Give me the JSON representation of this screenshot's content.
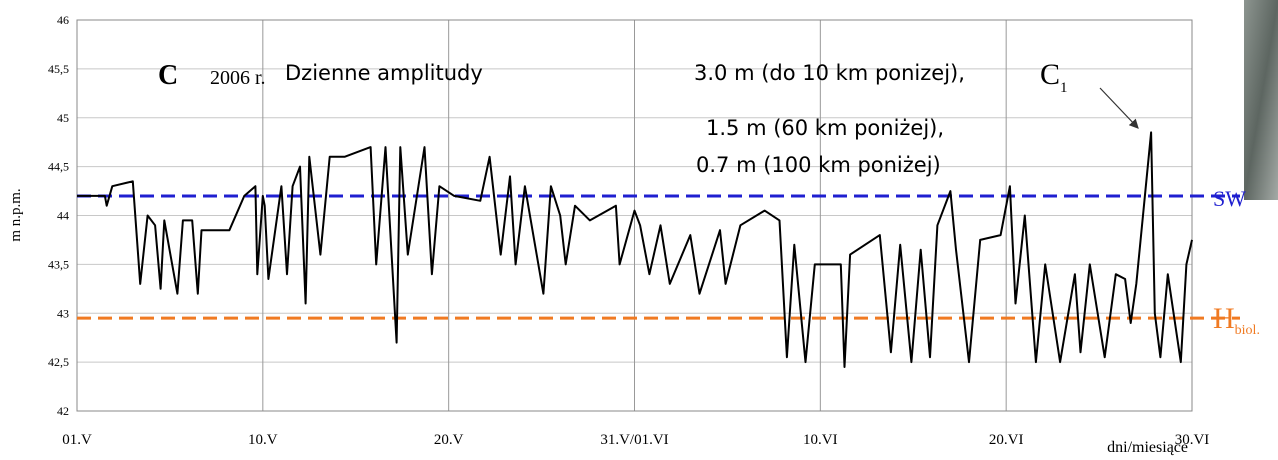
{
  "chart_data": {
    "type": "line",
    "y_label": "m n.p.m.",
    "x_label": "dni/miesiące",
    "xlim": [
      0,
      60
    ],
    "xticks": [
      {
        "value": 0,
        "label": "01.V"
      },
      {
        "value": 10,
        "label": "10.V"
      },
      {
        "value": 20,
        "label": "20.V"
      },
      {
        "value": 30,
        "label": "31.V/01.VI"
      },
      {
        "value": 40,
        "label": "10.VI"
      },
      {
        "value": 50,
        "label": "20.VI"
      },
      {
        "value": 60,
        "label": "30.VI"
      }
    ],
    "ylim": [
      42,
      46
    ],
    "yticks": [
      42,
      {
        "value": 42.5,
        "label": "42,5"
      },
      43,
      {
        "value": 43.5,
        "label": "43,5"
      },
      44,
      {
        "value": 44.5,
        "label": "44,5"
      },
      45,
      {
        "value": 45.5,
        "label": "45,5"
      },
      46
    ],
    "grid": true,
    "color": "#000000",
    "x": [
      0,
      1.5,
      1.6,
      1.9,
      3.0,
      3.4,
      3.8,
      4.2,
      4.5,
      4.7,
      5.4,
      5.7,
      6.2,
      6.5,
      6.7,
      8.2,
      9.0,
      9.6,
      9.7,
      10.0,
      10.1,
      10.3,
      11.0,
      11.3,
      11.6,
      12.0,
      12.3,
      12.5,
      13.1,
      13.6,
      14.4,
      15.8,
      16.1,
      16.6,
      17.2,
      17.4,
      17.8,
      18.7,
      19.1,
      19.5,
      20.3,
      21.7,
      22.2,
      22.8,
      23.3,
      23.6,
      24.1,
      25.1,
      25.5,
      26.0,
      26.3,
      26.8,
      27.6,
      29.0,
      29.2,
      30.0,
      30.3,
      30.8,
      31.4,
      31.9,
      33.0,
      33.5,
      34.6,
      34.9,
      35.7,
      37.0,
      37.8,
      38.2,
      38.6,
      39.2,
      39.7,
      41.1,
      41.3,
      41.6,
      43.2,
      43.8,
      44.3,
      44.9,
      45.4,
      45.9,
      46.3,
      47.0,
      47.3,
      48.0,
      48.6,
      49.7,
      50.2,
      50.5,
      51.0,
      51.6,
      52.1,
      52.9,
      53.7,
      54.0,
      54.5,
      55.3,
      55.9,
      56.4,
      56.7,
      57.0,
      57.8,
      58.0,
      58.3,
      58.7,
      59.4,
      59.7,
      60.0
    ],
    "values": [
      44.2,
      44.2,
      44.1,
      44.3,
      44.35,
      43.3,
      44.0,
      43.9,
      43.25,
      43.95,
      43.2,
      43.95,
      43.95,
      43.2,
      43.85,
      43.85,
      44.2,
      44.3,
      43.4,
      44.2,
      44.1,
      43.35,
      44.3,
      43.4,
      44.3,
      44.5,
      43.1,
      44.6,
      43.6,
      44.6,
      44.6,
      44.7,
      43.5,
      44.7,
      42.7,
      44.7,
      43.6,
      44.7,
      43.4,
      44.3,
      44.2,
      44.15,
      44.6,
      43.6,
      44.4,
      43.5,
      44.3,
      43.2,
      44.3,
      44.0,
      43.5,
      44.1,
      43.95,
      44.1,
      43.5,
      44.05,
      43.9,
      43.4,
      43.9,
      43.3,
      43.8,
      43.2,
      43.85,
      43.3,
      43.9,
      44.05,
      43.95,
      42.55,
      43.7,
      42.5,
      43.5,
      43.5,
      42.45,
      43.6,
      43.8,
      42.6,
      43.7,
      42.5,
      43.65,
      42.55,
      43.9,
      44.25,
      43.65,
      42.5,
      43.75,
      43.8,
      44.3,
      43.1,
      44.0,
      42.5,
      43.5,
      42.5,
      43.4,
      42.6,
      43.5,
      42.55,
      43.4,
      43.35,
      42.9,
      43.3,
      44.85,
      43.0,
      42.55,
      43.4,
      42.5,
      43.5,
      43.75
    ],
    "reference_lines": [
      {
        "value": 44.2,
        "label": "SW",
        "color": "#1f1fd0"
      },
      {
        "value": 42.95,
        "label": "H",
        "label_sub": "biol.",
        "color": "#f07a22"
      }
    ],
    "annotations": {
      "panel": "C",
      "year": "2006 r.",
      "heading": "Dzienne amplitudy",
      "lines": [
        "3.0 m (do 10 km ponizej),",
        "1.5 m (60 km poniżej),",
        "0.7 m (100 km poniżej)"
      ],
      "marker": "C",
      "marker_sub": "1"
    }
  }
}
